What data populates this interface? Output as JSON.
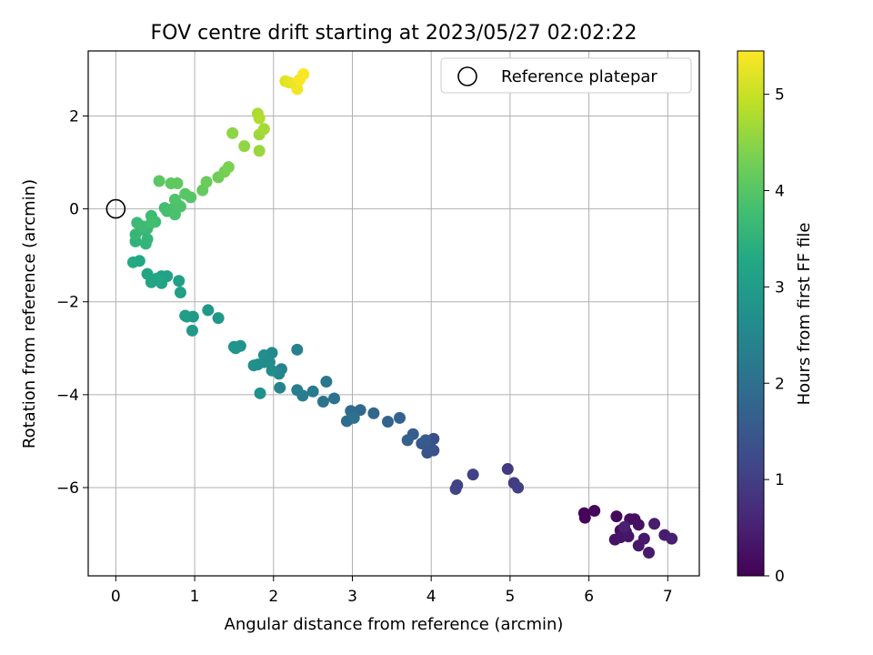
{
  "chart_data": {
    "type": "scatter",
    "title": "FOV centre drift starting at 2023/05/27 02:02:22",
    "xlabel": "Angular distance from reference (arcmin)",
    "ylabel": "Rotation from reference (arcmin)",
    "xlim": [
      -0.35,
      7.4
    ],
    "ylim": [
      -7.9,
      3.4
    ],
    "x_ticks": [
      0,
      1,
      2,
      3,
      4,
      5,
      6,
      7
    ],
    "y_ticks": [
      -6,
      -4,
      -2,
      0,
      2
    ],
    "grid": true,
    "legend": {
      "position": "top-right",
      "entries": [
        "Reference platepar"
      ]
    },
    "reference_point": {
      "x": 0,
      "y": 0
    },
    "colorbar": {
      "label": "Hours from first FF file",
      "range": [
        0,
        5.45
      ],
      "ticks": [
        0,
        1,
        2,
        3,
        4,
        5
      ],
      "colormap": "viridis"
    },
    "points": [
      {
        "x": 5.94,
        "y": -6.55,
        "c": 0.05
      },
      {
        "x": 5.95,
        "y": -6.65,
        "c": 0.08
      },
      {
        "x": 6.07,
        "y": -6.5,
        "c": 0.1
      },
      {
        "x": 6.35,
        "y": -6.62,
        "c": 0.12
      },
      {
        "x": 6.4,
        "y": -6.92,
        "c": 0.15
      },
      {
        "x": 6.47,
        "y": -6.95,
        "c": 0.18
      },
      {
        "x": 6.52,
        "y": -6.68,
        "c": 0.2
      },
      {
        "x": 6.58,
        "y": -6.68,
        "c": 0.22
      },
      {
        "x": 6.63,
        "y": -6.8,
        "c": 0.25
      },
      {
        "x": 6.33,
        "y": -7.12,
        "c": 0.27
      },
      {
        "x": 6.4,
        "y": -7.07,
        "c": 0.3
      },
      {
        "x": 6.5,
        "y": -7.05,
        "c": 0.33
      },
      {
        "x": 6.63,
        "y": -7.25,
        "c": 0.35
      },
      {
        "x": 6.7,
        "y": -7.1,
        "c": 0.37
      },
      {
        "x": 6.76,
        "y": -7.4,
        "c": 0.4
      },
      {
        "x": 6.83,
        "y": -6.78,
        "c": 0.43
      },
      {
        "x": 6.96,
        "y": -7.02,
        "c": 0.45
      },
      {
        "x": 7.05,
        "y": -7.1,
        "c": 0.48
      },
      {
        "x": 6.45,
        "y": -6.85,
        "c": 0.5
      },
      {
        "x": 4.97,
        "y": -5.6,
        "c": 0.9
      },
      {
        "x": 5.05,
        "y": -5.9,
        "c": 0.95
      },
      {
        "x": 5.1,
        "y": -6.0,
        "c": 1.0
      },
      {
        "x": 4.53,
        "y": -5.72,
        "c": 1.05
      },
      {
        "x": 4.33,
        "y": -5.95,
        "c": 1.1
      },
      {
        "x": 4.31,
        "y": -6.03,
        "c": 1.12
      },
      {
        "x": 4.03,
        "y": -4.95,
        "c": 1.3
      },
      {
        "x": 4.03,
        "y": -5.2,
        "c": 1.35
      },
      {
        "x": 3.95,
        "y": -5.25,
        "c": 1.4
      },
      {
        "x": 3.98,
        "y": -5.1,
        "c": 1.45
      },
      {
        "x": 3.88,
        "y": -5.05,
        "c": 1.5
      },
      {
        "x": 3.93,
        "y": -4.98,
        "c": 1.55
      },
      {
        "x": 3.77,
        "y": -4.85,
        "c": 1.6
      },
      {
        "x": 3.7,
        "y": -4.98,
        "c": 1.65
      },
      {
        "x": 3.6,
        "y": -4.5,
        "c": 1.7
      },
      {
        "x": 3.45,
        "y": -4.58,
        "c": 1.75
      },
      {
        "x": 3.27,
        "y": -4.4,
        "c": 1.8
      },
      {
        "x": 3.1,
        "y": -4.33,
        "c": 1.85
      },
      {
        "x": 2.98,
        "y": -4.35,
        "c": 1.9
      },
      {
        "x": 2.93,
        "y": -4.57,
        "c": 1.95
      },
      {
        "x": 3.02,
        "y": -4.5,
        "c": 2.0
      },
      {
        "x": 2.77,
        "y": -4.08,
        "c": 2.05
      },
      {
        "x": 2.63,
        "y": -4.15,
        "c": 2.1
      },
      {
        "x": 2.67,
        "y": -3.72,
        "c": 2.15
      },
      {
        "x": 2.5,
        "y": -3.93,
        "c": 2.2
      },
      {
        "x": 2.37,
        "y": -4.02,
        "c": 2.25
      },
      {
        "x": 2.3,
        "y": -3.9,
        "c": 2.3
      },
      {
        "x": 2.3,
        "y": -3.03,
        "c": 2.35
      },
      {
        "x": 2.1,
        "y": -3.45,
        "c": 2.4
      },
      {
        "x": 2.08,
        "y": -3.85,
        "c": 2.45
      },
      {
        "x": 2.07,
        "y": -3.55,
        "c": 2.5
      },
      {
        "x": 1.98,
        "y": -3.1,
        "c": 2.55
      },
      {
        "x": 1.98,
        "y": -3.48,
        "c": 2.6
      },
      {
        "x": 1.95,
        "y": -3.3,
        "c": 2.62
      },
      {
        "x": 1.88,
        "y": -3.15,
        "c": 2.64
      },
      {
        "x": 1.88,
        "y": -3.3,
        "c": 2.66
      },
      {
        "x": 1.8,
        "y": -3.35,
        "c": 2.68
      },
      {
        "x": 1.75,
        "y": -3.37,
        "c": 2.7
      },
      {
        "x": 1.83,
        "y": -3.97,
        "c": 2.72
      },
      {
        "x": 1.5,
        "y": -2.97,
        "c": 2.75
      },
      {
        "x": 1.58,
        "y": -2.95,
        "c": 2.78
      },
      {
        "x": 1.52,
        "y": -3.0,
        "c": 2.8
      },
      {
        "x": 1.3,
        "y": -2.35,
        "c": 2.85
      },
      {
        "x": 1.17,
        "y": -2.18,
        "c": 2.9
      },
      {
        "x": 0.98,
        "y": -2.32,
        "c": 2.92
      },
      {
        "x": 0.97,
        "y": -2.62,
        "c": 2.95
      },
      {
        "x": 0.9,
        "y": -2.32,
        "c": 2.97
      },
      {
        "x": 0.88,
        "y": -2.3,
        "c": 3.0
      },
      {
        "x": 0.82,
        "y": -1.8,
        "c": 3.05
      },
      {
        "x": 0.8,
        "y": -1.55,
        "c": 3.08
      },
      {
        "x": 0.65,
        "y": -1.45,
        "c": 3.1
      },
      {
        "x": 0.58,
        "y": -1.45,
        "c": 3.12
      },
      {
        "x": 0.58,
        "y": -1.6,
        "c": 3.15
      },
      {
        "x": 0.45,
        "y": -1.58,
        "c": 3.18
      },
      {
        "x": 0.4,
        "y": -1.4,
        "c": 3.2
      },
      {
        "x": 0.52,
        "y": -1.5,
        "c": 3.22
      },
      {
        "x": 0.3,
        "y": -1.12,
        "c": 3.25
      },
      {
        "x": 0.22,
        "y": -1.15,
        "c": 3.3
      },
      {
        "x": 0.25,
        "y": -0.7,
        "c": 3.5
      },
      {
        "x": 0.38,
        "y": -0.75,
        "c": 3.55
      },
      {
        "x": 0.4,
        "y": -0.65,
        "c": 3.58
      },
      {
        "x": 0.25,
        "y": -0.55,
        "c": 3.6
      },
      {
        "x": 0.32,
        "y": -0.45,
        "c": 3.62
      },
      {
        "x": 0.4,
        "y": -0.42,
        "c": 3.65
      },
      {
        "x": 0.27,
        "y": -0.3,
        "c": 3.68
      },
      {
        "x": 0.35,
        "y": -0.38,
        "c": 3.7
      },
      {
        "x": 0.45,
        "y": -0.15,
        "c": 3.72
      },
      {
        "x": 0.5,
        "y": -0.28,
        "c": 3.75
      },
      {
        "x": 0.45,
        "y": -0.3,
        "c": 3.78
      },
      {
        "x": 0.62,
        "y": 0.02,
        "c": 3.8
      },
      {
        "x": 0.65,
        "y": -0.05,
        "c": 3.82
      },
      {
        "x": 0.72,
        "y": 0.0,
        "c": 3.85
      },
      {
        "x": 0.75,
        "y": -0.12,
        "c": 3.87
      },
      {
        "x": 0.78,
        "y": 0.1,
        "c": 3.9
      },
      {
        "x": 0.82,
        "y": 0.05,
        "c": 3.92
      },
      {
        "x": 0.75,
        "y": 0.2,
        "c": 3.95
      },
      {
        "x": 0.95,
        "y": 0.25,
        "c": 4.0
      },
      {
        "x": 0.88,
        "y": 0.32,
        "c": 4.02
      },
      {
        "x": 0.55,
        "y": 0.6,
        "c": 4.05
      },
      {
        "x": 0.7,
        "y": 0.55,
        "c": 4.08
      },
      {
        "x": 0.78,
        "y": 0.55,
        "c": 4.1
      },
      {
        "x": 1.1,
        "y": 0.4,
        "c": 4.15
      },
      {
        "x": 1.15,
        "y": 0.58,
        "c": 4.2
      },
      {
        "x": 1.3,
        "y": 0.68,
        "c": 4.25
      },
      {
        "x": 1.38,
        "y": 0.8,
        "c": 4.3
      },
      {
        "x": 1.43,
        "y": 0.9,
        "c": 4.35
      },
      {
        "x": 1.48,
        "y": 1.63,
        "c": 4.5
      },
      {
        "x": 1.63,
        "y": 1.35,
        "c": 4.55
      },
      {
        "x": 1.82,
        "y": 1.25,
        "c": 4.6
      },
      {
        "x": 1.82,
        "y": 1.6,
        "c": 4.65
      },
      {
        "x": 1.88,
        "y": 1.72,
        "c": 4.7
      },
      {
        "x": 1.8,
        "y": 2.05,
        "c": 4.75
      },
      {
        "x": 1.82,
        "y": 1.95,
        "c": 4.8
      },
      {
        "x": 2.15,
        "y": 2.75,
        "c": 5.2
      },
      {
        "x": 2.2,
        "y": 2.72,
        "c": 5.25
      },
      {
        "x": 2.27,
        "y": 2.7,
        "c": 5.3
      },
      {
        "x": 2.3,
        "y": 2.58,
        "c": 5.35
      },
      {
        "x": 2.33,
        "y": 2.78,
        "c": 5.4
      },
      {
        "x": 2.38,
        "y": 2.9,
        "c": 5.42
      }
    ]
  }
}
